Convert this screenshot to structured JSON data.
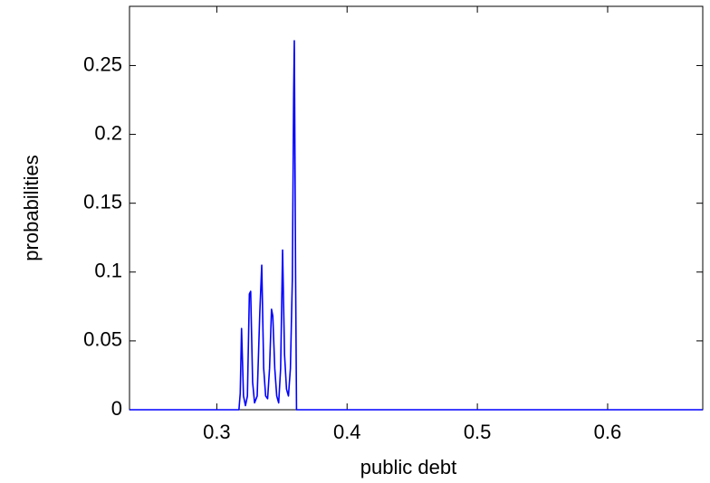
{
  "chart_data": {
    "type": "line",
    "xlabel": "public debt",
    "ylabel": "probabilities",
    "x": [
      0.233,
      0.317,
      0.318,
      0.319,
      0.3205,
      0.322,
      0.3235,
      0.325,
      0.326,
      0.3275,
      0.329,
      0.331,
      0.333,
      0.3345,
      0.336,
      0.3375,
      0.339,
      0.3405,
      0.342,
      0.343,
      0.3445,
      0.346,
      0.3475,
      0.349,
      0.3505,
      0.352,
      0.3535,
      0.355,
      0.3565,
      0.358,
      0.359,
      0.3595,
      0.3605,
      0.3612,
      0.673
    ],
    "values": [
      0,
      0,
      0.012,
      0.059,
      0.01,
      0.003,
      0.01,
      0.084,
      0.086,
      0.02,
      0.005,
      0.01,
      0.07,
      0.105,
      0.03,
      0.01,
      0.008,
      0.03,
      0.073,
      0.068,
      0.03,
      0.01,
      0.005,
      0.03,
      0.116,
      0.04,
      0.015,
      0.01,
      0.03,
      0.095,
      0.229,
      0.268,
      0.095,
      0,
      0
    ],
    "color": "#0000ff",
    "xlim": [
      0.233,
      0.673
    ],
    "ylim": [
      0,
      0.293
    ],
    "xticks": [
      0.3,
      0.4,
      0.5,
      0.6
    ],
    "yticks": [
      0,
      0.05,
      0.1,
      0.15,
      0.2,
      0.25
    ],
    "grid": false
  }
}
